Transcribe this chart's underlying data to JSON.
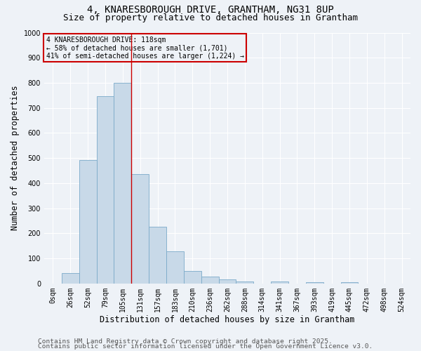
{
  "title_line1": "4, KNARESBOROUGH DRIVE, GRANTHAM, NG31 8UP",
  "title_line2": "Size of property relative to detached houses in Grantham",
  "xlabel": "Distribution of detached houses by size in Grantham",
  "ylabel": "Number of detached properties",
  "footnote1": "Contains HM Land Registry data © Crown copyright and database right 2025.",
  "footnote2": "Contains public sector information licensed under the Open Government Licence v3.0.",
  "annotation_line1": "4 KNARESBOROUGH DRIVE: 118sqm",
  "annotation_line2": "← 58% of detached houses are smaller (1,701)",
  "annotation_line3": "41% of semi-detached houses are larger (1,224) →",
  "bar_labels": [
    "0sqm",
    "26sqm",
    "52sqm",
    "79sqm",
    "105sqm",
    "131sqm",
    "157sqm",
    "183sqm",
    "210sqm",
    "236sqm",
    "262sqm",
    "288sqm",
    "314sqm",
    "341sqm",
    "367sqm",
    "393sqm",
    "419sqm",
    "445sqm",
    "472sqm",
    "498sqm",
    "524sqm"
  ],
  "bar_values": [
    0,
    42,
    492,
    748,
    800,
    435,
    225,
    128,
    50,
    28,
    15,
    8,
    0,
    8,
    0,
    6,
    0,
    6,
    0,
    0,
    0
  ],
  "bar_color": "#c8d9e8",
  "bar_edge_color": "#7baac9",
  "vline_x": 4.5,
  "vline_color": "#cc0000",
  "ylim": [
    0,
    1000
  ],
  "yticks": [
    0,
    100,
    200,
    300,
    400,
    500,
    600,
    700,
    800,
    900,
    1000
  ],
  "bg_color": "#eef2f7",
  "grid_color": "#ffffff",
  "annotation_box_color": "#cc0000",
  "title_fontsize": 10,
  "subtitle_fontsize": 9,
  "axis_label_fontsize": 8.5,
  "tick_fontsize": 7,
  "footnote_fontsize": 6.8
}
